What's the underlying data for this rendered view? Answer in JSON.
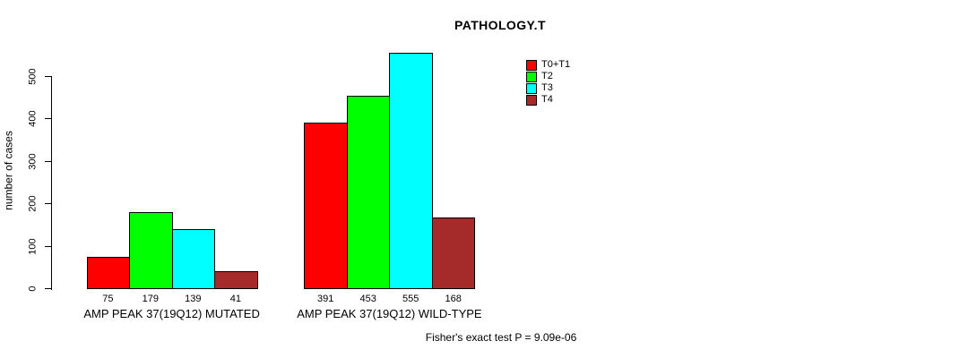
{
  "chart_data": {
    "type": "bar",
    "title": "PATHOLOGY.T",
    "ylabel": "number of cases",
    "xlabel": "",
    "ylim": [
      0,
      500
    ],
    "yticks": [
      0,
      100,
      200,
      300,
      400,
      500
    ],
    "grid": false,
    "legend_position": "top-right-inside",
    "bar_value_labels": true,
    "series": [
      {
        "name": "T0+T1",
        "color": "#ff0000"
      },
      {
        "name": "T2",
        "color": "#00ff00"
      },
      {
        "name": "T3",
        "color": "#00ffff"
      },
      {
        "name": "T4",
        "color": "#a52a2a"
      }
    ],
    "categories": [
      "AMP PEAK 37(19Q12) MUTATED",
      "AMP PEAK 37(19Q12) WILD-TYPE"
    ],
    "groups": [
      {
        "label": "AMP PEAK 37(19Q12) MUTATED",
        "values": [
          75,
          179,
          139,
          41
        ]
      },
      {
        "label": "AMP PEAK 37(19Q12) WILD-TYPE",
        "values": [
          391,
          453,
          555,
          168
        ]
      }
    ],
    "annotation": "Fisher's exact test P = 9.09e-06"
  }
}
